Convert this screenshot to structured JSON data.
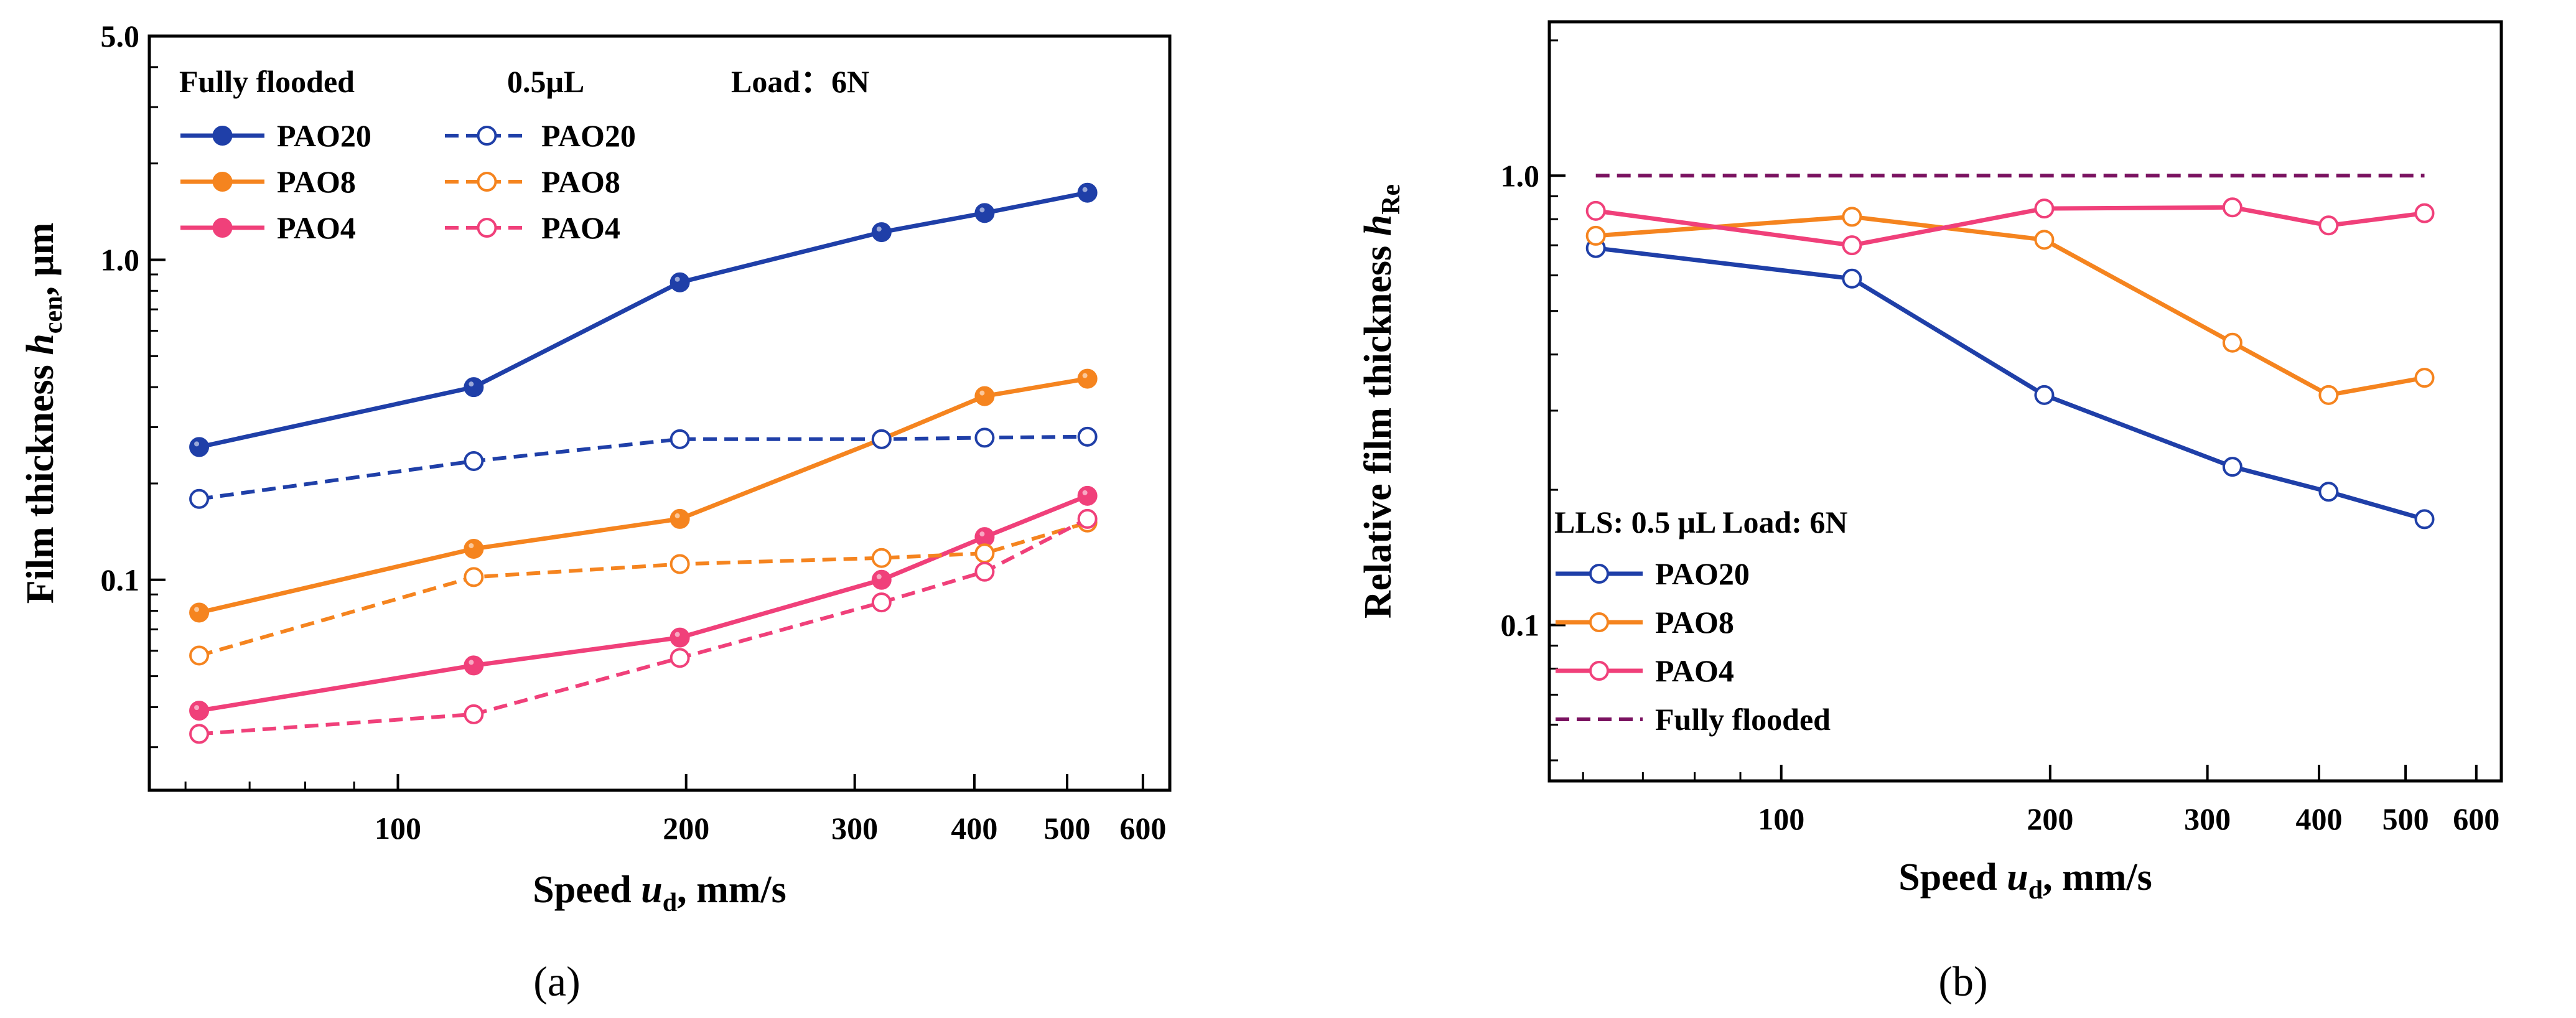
{
  "chart_data": [
    {
      "type": "line",
      "panel_label": "(a)",
      "xscale": "log",
      "yscale": "log",
      "xlim": [
        55,
        640
      ],
      "ylim": [
        0.022,
        5.0
      ],
      "xticks": [
        100,
        200,
        300,
        400,
        500,
        600
      ],
      "xtick_labels": [
        "100",
        "200",
        "300",
        "400",
        "500",
        "600"
      ],
      "yticks": [
        0.1,
        1.0,
        5.0
      ],
      "ytick_labels": [
        "0.1",
        "1.0",
        "5.0"
      ],
      "xlabel": {
        "pre": "Speed ",
        "var": "u",
        "sub": "d",
        "post": ", mm/s"
      },
      "ylabel": {
        "pre": "Film thickness ",
        "var": "h",
        "sub": "cen",
        "post": ", μm"
      },
      "legend_headers": {
        "left": "Fully flooded",
        "mid": "0.5μL",
        "right": "Load：6N"
      },
      "x": [
        62,
        120,
        197,
        320,
        410,
        525
      ],
      "series": [
        {
          "name": "PAO20",
          "group": "Fully flooded",
          "style": "solid",
          "marker": "filled",
          "color": "#1f3fa8",
          "values": [
            0.26,
            0.4,
            0.85,
            1.22,
            1.4,
            1.62
          ]
        },
        {
          "name": "PAO8",
          "group": "Fully flooded",
          "style": "solid",
          "marker": "filled",
          "color": "#f5841f",
          "values": [
            0.079,
            0.125,
            0.155,
            0.275,
            0.375,
            0.425
          ]
        },
        {
          "name": "PAO4",
          "group": "Fully flooded",
          "style": "solid",
          "marker": "filled",
          "color": "#f0407a",
          "values": [
            0.039,
            0.054,
            0.066,
            0.1,
            0.136,
            0.183
          ]
        },
        {
          "name": "PAO20",
          "group": "0.5μL",
          "style": "dashed",
          "marker": "open",
          "color": "#1f3fa8",
          "values": [
            0.179,
            0.235,
            0.275,
            0.275,
            0.278,
            0.28
          ]
        },
        {
          "name": "PAO8",
          "group": "0.5μL",
          "style": "dashed",
          "marker": "open",
          "color": "#f5841f",
          "values": [
            0.058,
            0.102,
            0.112,
            0.117,
            0.121,
            0.151
          ]
        },
        {
          "name": "PAO4",
          "group": "0.5μL",
          "style": "dashed",
          "marker": "open",
          "color": "#f0407a",
          "values": [
            0.033,
            0.038,
            0.057,
            0.085,
            0.106,
            0.155
          ]
        }
      ]
    },
    {
      "type": "line",
      "panel_label": "(b)",
      "xscale": "log",
      "yscale": "log",
      "xlim": [
        55,
        640
      ],
      "ylim": [
        0.045,
        2.2
      ],
      "xticks": [
        100,
        200,
        300,
        400,
        500,
        600
      ],
      "xtick_labels": [
        "100",
        "200",
        "300",
        "400",
        "500",
        "600"
      ],
      "yticks": [
        0.1,
        1.0
      ],
      "ytick_labels": [
        "0.1",
        "1.0"
      ],
      "xlabel": {
        "pre": "Speed ",
        "var": "u",
        "sub": "d",
        "post": ", mm/s"
      },
      "ylabel": {
        "pre": "Relative film thickness ",
        "var": "h",
        "sub": "Re",
        "post": ""
      },
      "legend_header": "LLS: 0.5 μL   Load: 6N",
      "x": [
        62,
        120,
        197,
        320,
        410,
        525
      ],
      "series": [
        {
          "name": "PAO20",
          "style": "solid",
          "marker": "open",
          "color": "#1f3fa8",
          "values": [
            0.69,
            0.59,
            0.325,
            0.225,
            0.198,
            0.172
          ]
        },
        {
          "name": "PAO8",
          "style": "solid",
          "marker": "open",
          "color": "#f5841f",
          "values": [
            0.735,
            0.81,
            0.72,
            0.425,
            0.325,
            0.355
          ]
        },
        {
          "name": "PAO4",
          "style": "solid",
          "marker": "open",
          "color": "#f0407a",
          "values": [
            0.835,
            0.7,
            0.845,
            0.85,
            0.775,
            0.825
          ]
        },
        {
          "name": "Fully flooded",
          "style": "dashed",
          "marker": "none",
          "color": "#7a1260",
          "values": [
            1.0,
            1.0,
            1.0,
            1.0,
            1.0,
            1.0
          ]
        }
      ]
    }
  ]
}
